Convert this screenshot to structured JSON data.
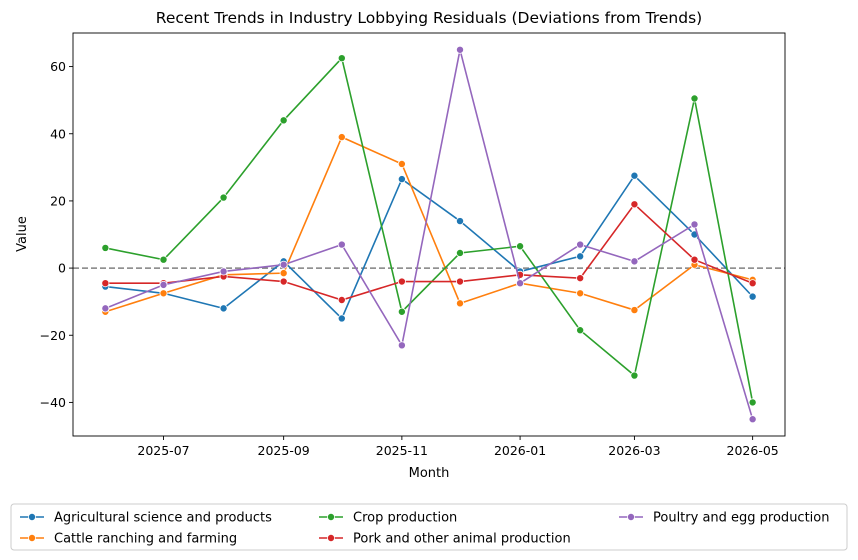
{
  "chart_data": {
    "type": "line",
    "title": "Recent Trends in Industry Lobbying Residuals (Deviations from Trends)",
    "xlabel": "Month",
    "ylabel": "Value",
    "x": [
      "2025-06",
      "2025-07",
      "2025-08",
      "2025-09",
      "2025-10",
      "2025-11",
      "2025-12",
      "2026-01",
      "2026-02",
      "2026-03",
      "2026-04",
      "2026-05"
    ],
    "x_ticks": [
      "2025-07",
      "2025-09",
      "2025-11",
      "2026-01",
      "2026-03",
      "2026-05"
    ],
    "y_ticks": [
      -40,
      -20,
      0,
      20,
      40,
      60
    ],
    "ylim": [
      -50,
      70
    ],
    "reference_line": 0,
    "grid": false,
    "legend_placement": "bottom",
    "series": [
      {
        "name": "Agricultural science and products",
        "color": "#1f77b4",
        "values": [
          -5.5,
          -7.5,
          -12,
          2,
          -15,
          26.5,
          14,
          -1,
          3.5,
          27.5,
          10,
          -8.5
        ]
      },
      {
        "name": "Cattle ranching and farming",
        "color": "#ff7f0e",
        "values": [
          -13,
          -7.5,
          -2,
          -1.5,
          39,
          31,
          -10.5,
          -4.5,
          -7.5,
          -12.5,
          1,
          -3.5
        ]
      },
      {
        "name": "Crop production",
        "color": "#2ca02c",
        "values": [
          6,
          2.5,
          21,
          44,
          62.5,
          -13,
          4.5,
          6.5,
          -18.5,
          -32,
          50.5,
          -40
        ]
      },
      {
        "name": "Pork and other animal production",
        "color": "#d62728",
        "values": [
          -4.5,
          -4.5,
          -2.5,
          -4,
          -9.5,
          -4,
          -4,
          -2,
          -3,
          19,
          2.5,
          -4.5
        ]
      },
      {
        "name": "Poultry and egg production",
        "color": "#9467bd",
        "values": [
          -12,
          -5,
          -1,
          1,
          7,
          -23,
          65,
          -4.5,
          7,
          2,
          13,
          -45
        ]
      }
    ]
  }
}
